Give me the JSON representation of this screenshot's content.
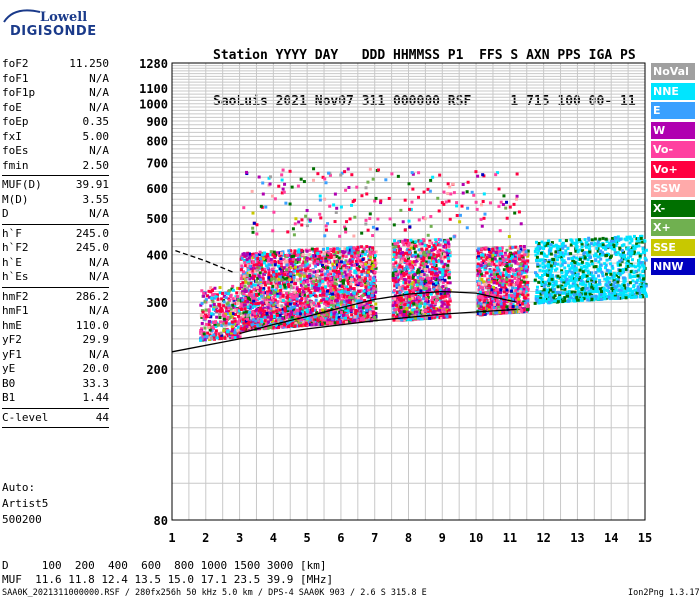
{
  "logo": {
    "line1": "Lowell",
    "line2": "DIGISONDE"
  },
  "header": {
    "labels": "Station YYYY DAY   DDD HHMMSS P1  FFS S AXN PPS IGA PS",
    "values": "SaoLuis 2021 Nov07 311 000000 RSF     1 715 100 00- 11"
  },
  "params": [
    {
      "name": "foF2",
      "value": "11.250"
    },
    {
      "name": "foF1",
      "value": "N/A"
    },
    {
      "name": "foF1p",
      "value": "N/A"
    },
    {
      "name": "foE",
      "value": "N/A"
    },
    {
      "name": "foEp",
      "value": "0.35"
    },
    {
      "name": "fxI",
      "value": "5.00"
    },
    {
      "name": "foEs",
      "value": "N/A"
    },
    {
      "name": "fmin",
      "value": "2.50"
    },
    {
      "sep": true
    },
    {
      "name": "MUF(D)",
      "value": "39.91"
    },
    {
      "name": "M(D)",
      "value": "3.55"
    },
    {
      "name": "D",
      "value": "N/A"
    },
    {
      "sep": true
    },
    {
      "name": "h`F",
      "value": "245.0"
    },
    {
      "name": "h`F2",
      "value": "245.0"
    },
    {
      "name": "h`E",
      "value": "N/A"
    },
    {
      "name": "h`Es",
      "value": "N/A"
    },
    {
      "sep": true
    },
    {
      "name": "hmF2",
      "value": "286.2"
    },
    {
      "name": "hmF1",
      "value": "N/A"
    },
    {
      "name": "hmE",
      "value": "110.0"
    },
    {
      "name": "yF2",
      "value": "29.9"
    },
    {
      "name": "yF1",
      "value": "N/A"
    },
    {
      "name": "yE",
      "value": "20.0"
    },
    {
      "name": "B0",
      "value": "33.3"
    },
    {
      "name": "B1",
      "value": "1.44"
    },
    {
      "sep": true
    },
    {
      "name": "C-level",
      "value": "44"
    },
    {
      "sep": true
    }
  ],
  "auto": {
    "line1": "Auto:",
    "line2": "Artist5",
    "line3": "500200"
  },
  "legend": [
    {
      "label": "NoVal",
      "color": "#a0a0a0"
    },
    {
      "label": "NNE",
      "color": "#00e5ff"
    },
    {
      "label": "E",
      "color": "#3aa0ff"
    },
    {
      "label": "W",
      "color": "#b000b0"
    },
    {
      "label": "Vo-",
      "color": "#ff40a0"
    },
    {
      "label": "Vo+",
      "color": "#ff0040"
    },
    {
      "label": "SSW",
      "color": "#ffaaaa"
    },
    {
      "label": "X-",
      "color": "#007000"
    },
    {
      "label": "X+",
      "color": "#70b050"
    },
    {
      "label": "SSE",
      "color": "#c8c800"
    },
    {
      "label": "NNW",
      "color": "#0000c0"
    }
  ],
  "footer": {
    "row1": "D     100  200  400  600  800 1000 1500 3000 [km]",
    "row2": "MUF  11.6 11.8 12.4 13.5 15.0 17.1 23.5 39.9 [MHz]",
    "file": "SAA0K_2021311000000.RSF / 280fx256h 50 kHz 5.0 km / DPS-4 SAA0K 903 / 2.6 S 315.8 E",
    "version": "Ion2Png 1.3.17"
  },
  "chart_data": {
    "type": "scatter",
    "title": "",
    "xlabel": "",
    "ylabel": "",
    "xlim": [
      1,
      15
    ],
    "ylim": [
      80,
      1280
    ],
    "y_scale": "log",
    "x_ticks": [
      "1",
      "2",
      "3",
      "4",
      "5",
      "6",
      "7",
      "8",
      "9",
      "10",
      "11",
      "12",
      "13",
      "14",
      "15"
    ],
    "y_ticks": [
      80,
      200,
      300,
      400,
      500,
      600,
      700,
      800,
      900,
      1000,
      1100,
      1280
    ],
    "grid": true,
    "legend_position": "right",
    "traces": [
      {
        "name": "",
        "style": "solid",
        "x": [
          1.0,
          3,
          5,
          7,
          9,
          11.2
        ],
        "y": [
          222,
          240,
          255,
          268,
          279,
          287
        ]
      },
      {
        "name": "",
        "style": "solid",
        "x": [
          3,
          4,
          5,
          6,
          7,
          8,
          9,
          10,
          11.2
        ],
        "y": [
          248,
          262,
          275,
          290,
          305,
          315,
          320,
          317,
          300
        ]
      },
      {
        "name": "",
        "style": "dashed",
        "x": [
          1.1,
          2.0,
          2.8
        ],
        "y": [
          410,
          385,
          360
        ]
      }
    ],
    "echo_regions": [
      {
        "x": [
          1.8,
          3.0
        ],
        "y": [
          240,
          330
        ],
        "note": "mixed"
      },
      {
        "x": [
          3.0,
          7.0
        ],
        "y": [
          250,
          420
        ],
        "note": "mixed"
      },
      {
        "x": [
          7.5,
          9.0
        ],
        "y": [
          270,
          440
        ],
        "note": "mixed"
      },
      {
        "x": [
          10.0,
          11.5
        ],
        "y": [
          280,
          420
        ],
        "note": "mixed"
      },
      {
        "x": [
          12.0,
          15.0
        ],
        "y": [
          300,
          440
        ],
        "note": "mixed"
      }
    ]
  }
}
